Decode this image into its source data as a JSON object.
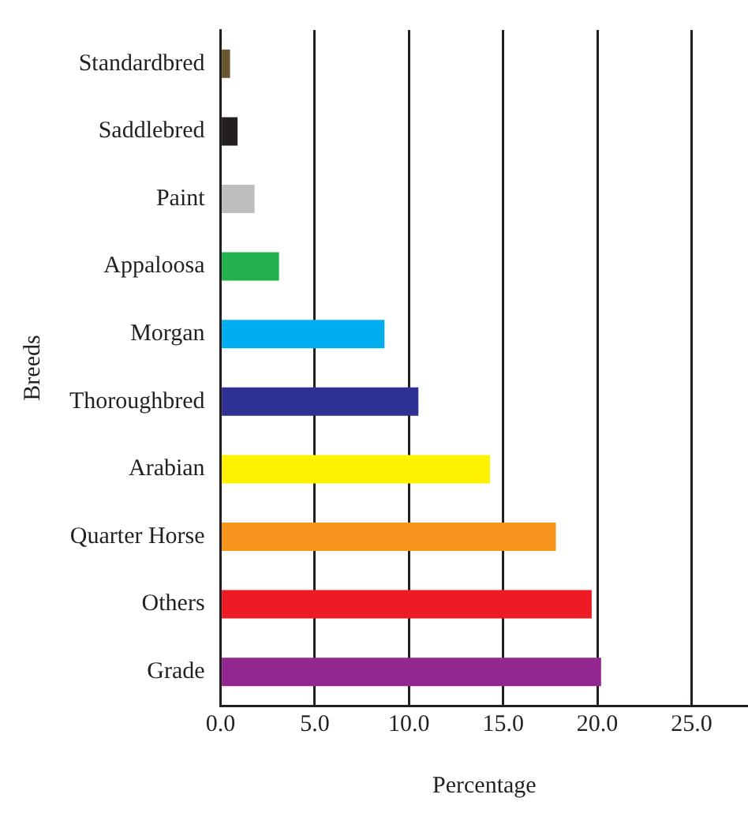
{
  "chart_data": {
    "type": "bar",
    "orientation": "horizontal",
    "xlabel": "Percentage",
    "ylabel": "Breeds",
    "categories": [
      "Standardbred",
      "Saddlebred",
      "Paint",
      "Appaloosa",
      "Morgan",
      "Thoroughbred",
      "Arabian",
      "Quarter Horse",
      "Others",
      "Grade"
    ],
    "values": [
      0.5,
      0.9,
      1.8,
      3.1,
      8.7,
      10.5,
      14.3,
      17.8,
      19.7,
      20.2
    ],
    "colors": [
      "#6b5530",
      "#231f20",
      "#bcbec0",
      "#22b14c",
      "#00aeef",
      "#2e3192",
      "#fff200",
      "#f7941d",
      "#ed1c24",
      "#92278f"
    ],
    "xlim": [
      0,
      28
    ],
    "xticks": [
      {
        "value": 0,
        "label": "0.0"
      },
      {
        "value": 5,
        "label": "5.0"
      },
      {
        "value": 10,
        "label": "10.0"
      },
      {
        "value": 15,
        "label": "15.0"
      },
      {
        "value": 20,
        "label": "20.0"
      },
      {
        "value": 25,
        "label": "25.0"
      }
    ],
    "grid": "x",
    "legend": false
  }
}
